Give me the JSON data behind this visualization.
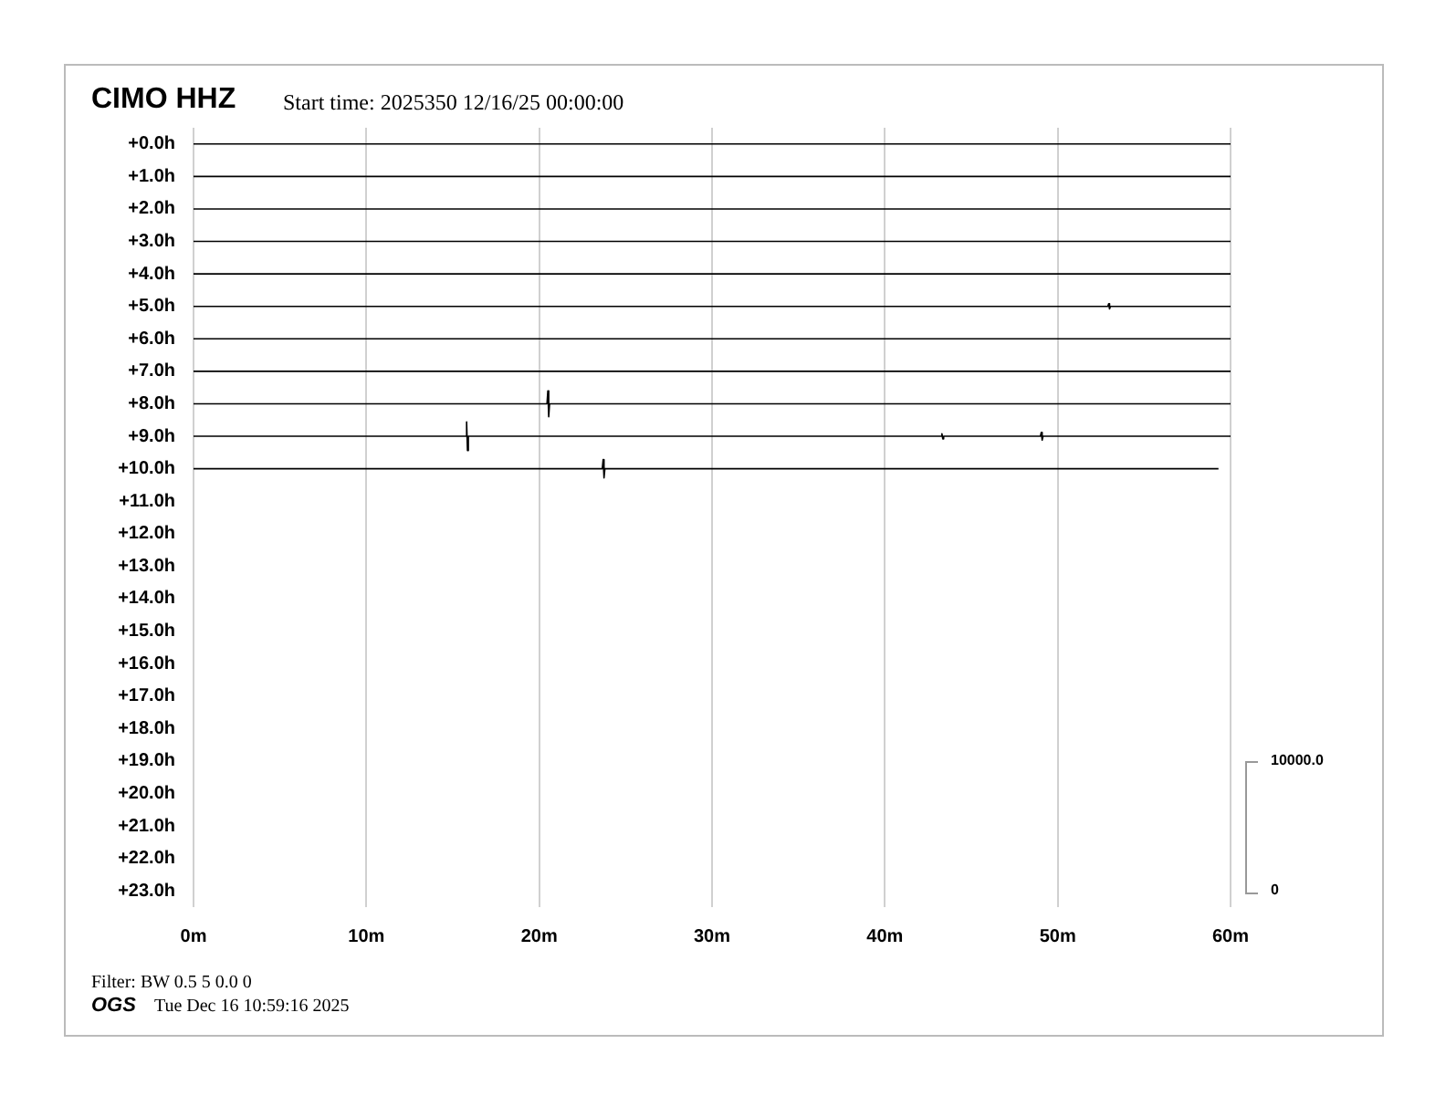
{
  "chart_data": {
    "type": "line",
    "title": "CIMO HHZ",
    "subtitle": "Start time: 2025350 12/16/25 00:00:00",
    "annotations": [
      "Filter: BW 0.5 5 0.0 0",
      "OGS",
      "Tue Dec 16 10:59:16 2025",
      "10000.0",
      "0"
    ],
    "xlim": [
      0,
      60
    ],
    "xticks": [
      {
        "value": 0,
        "label": "0m"
      },
      {
        "value": 10,
        "label": "10m"
      },
      {
        "value": 20,
        "label": "20m"
      },
      {
        "value": 30,
        "label": "30m"
      },
      {
        "value": 40,
        "label": "40m"
      },
      {
        "value": 50,
        "label": "50m"
      },
      {
        "value": 60,
        "label": "60m"
      }
    ],
    "ylim": [
      23.5,
      -0.5
    ],
    "yticks": [
      {
        "value": 0,
        "label": "+0.0h"
      },
      {
        "value": 1,
        "label": "+1.0h"
      },
      {
        "value": 2,
        "label": "+2.0h"
      },
      {
        "value": 3,
        "label": "+3.0h"
      },
      {
        "value": 4,
        "label": "+4.0h"
      },
      {
        "value": 5,
        "label": "+5.0h"
      },
      {
        "value": 6,
        "label": "+6.0h"
      },
      {
        "value": 7,
        "label": "+7.0h"
      },
      {
        "value": 8,
        "label": "+8.0h"
      },
      {
        "value": 9,
        "label": "+9.0h"
      },
      {
        "value": 10,
        "label": "+10.0h"
      },
      {
        "value": 11,
        "label": "+11.0h"
      },
      {
        "value": 12,
        "label": "+12.0h"
      },
      {
        "value": 13,
        "label": "+13.0h"
      },
      {
        "value": 14,
        "label": "+14.0h"
      },
      {
        "value": 15,
        "label": "+15.0h"
      },
      {
        "value": 16,
        "label": "+16.0h"
      },
      {
        "value": 17,
        "label": "+17.0h"
      },
      {
        "value": 18,
        "label": "+18.0h"
      },
      {
        "value": 19,
        "label": "+19.0h"
      },
      {
        "value": 20,
        "label": "+20.0h"
      },
      {
        "value": 21,
        "label": "+21.0h"
      },
      {
        "value": 22,
        "label": "+22.0h"
      },
      {
        "value": 23,
        "label": "+23.0h"
      }
    ],
    "grid": "x",
    "legend": false,
    "marker": "none",
    "line_style": "solid",
    "series": [
      {
        "color": "#000000",
        "x": [
          0,
          60
        ],
        "values": [
          0,
          0
        ]
      },
      {
        "color": "#000000",
        "x": [
          0,
          60
        ],
        "values": [
          1,
          1
        ]
      },
      {
        "color": "#000000",
        "x": [
          0,
          60
        ],
        "values": [
          2,
          2
        ]
      },
      {
        "color": "#000000",
        "x": [
          0,
          60
        ],
        "values": [
          3,
          3
        ]
      },
      {
        "color": "#000000",
        "x": [
          0,
          60
        ],
        "values": [
          4,
          4
        ]
      },
      {
        "color": "#000000",
        "x": [
          0,
          52.9,
          52.95,
          53.0,
          53.05,
          60
        ],
        "values": [
          5,
          5,
          4.92,
          5.08,
          5,
          5
        ]
      },
      {
        "color": "#000000",
        "x": [
          0,
          60
        ],
        "values": [
          6,
          6
        ]
      },
      {
        "color": "#000000",
        "x": [
          0,
          60
        ],
        "values": [
          7,
          7
        ]
      },
      {
        "color": "#000000",
        "x": [
          0,
          20.45,
          20.5,
          20.55,
          20.6,
          60
        ],
        "values": [
          8,
          8,
          7.6,
          8.4,
          8,
          8
        ]
      },
      {
        "color": "#000000",
        "x": [
          0,
          15.75,
          15.8,
          15.85,
          15.9,
          43.25,
          43.3,
          43.35,
          43.4,
          49.0,
          49.05,
          49.1,
          49.15,
          60
        ],
        "values": [
          9,
          9,
          8.56,
          9.44,
          9,
          9,
          8.92,
          9.08,
          9,
          9,
          8.88,
          9.12,
          9,
          9
        ]
      },
      {
        "color": "#000000",
        "x": [
          0,
          23.65,
          23.7,
          23.75,
          23.8,
          59.3
        ],
        "values": [
          10,
          10,
          9.72,
          10.28,
          10,
          10
        ]
      }
    ]
  }
}
